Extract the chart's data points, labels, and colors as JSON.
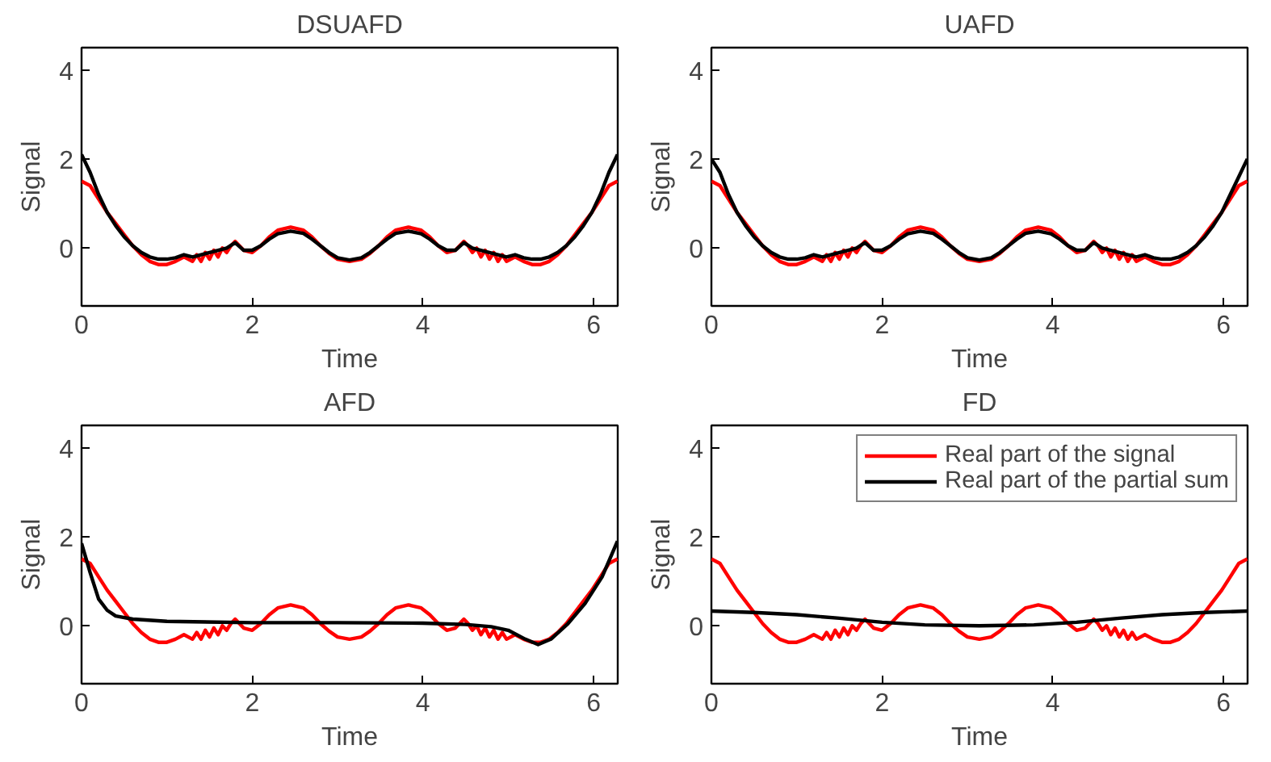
{
  "chart_data": [
    {
      "type": "line",
      "title": "DSUAFD",
      "xlabel": "Time",
      "ylabel": "Signal",
      "xlim": [
        0,
        6.283
      ],
      "ylim": [
        -1.3,
        4.5
      ],
      "xticks": [
        0,
        2,
        4,
        6
      ],
      "yticks": [
        0,
        2,
        4
      ],
      "grid": false,
      "legend": false,
      "series": [
        {
          "color": "#ff0000",
          "x": [
            0,
            0.1,
            0.2,
            0.3,
            0.4,
            0.5,
            0.6,
            0.7,
            0.8,
            0.9,
            1.0,
            1.1,
            1.2,
            1.3,
            1.35,
            1.4,
            1.45,
            1.5,
            1.55,
            1.6,
            1.65,
            1.7,
            1.75,
            1.8,
            1.9,
            2.0,
            2.1,
            2.2,
            2.3,
            2.45,
            2.6,
            2.7,
            2.8,
            2.9,
            3.0,
            3.14,
            3.28,
            3.38,
            3.48,
            3.58,
            3.68,
            3.83,
            3.98,
            4.08,
            4.18,
            4.28,
            4.38,
            4.48,
            4.53,
            4.58,
            4.63,
            4.68,
            4.73,
            4.78,
            4.83,
            4.88,
            4.93,
            4.98,
            5.08,
            5.18,
            5.28,
            5.38,
            5.48,
            5.58,
            5.68,
            5.78,
            5.88,
            5.98,
            6.08,
            6.18,
            6.28
          ],
          "values": [
            1.5,
            1.4,
            1.1,
            0.8,
            0.55,
            0.3,
            0.05,
            -0.15,
            -0.3,
            -0.37,
            -0.37,
            -0.3,
            -0.2,
            -0.3,
            -0.15,
            -0.3,
            -0.1,
            -0.25,
            -0.05,
            -0.2,
            0.0,
            -0.1,
            0.05,
            0.15,
            -0.05,
            -0.1,
            0.05,
            0.25,
            0.4,
            0.47,
            0.4,
            0.25,
            0.05,
            -0.12,
            -0.25,
            -0.3,
            -0.25,
            -0.12,
            0.05,
            0.25,
            0.4,
            0.47,
            0.4,
            0.25,
            0.05,
            -0.1,
            -0.05,
            0.15,
            0.05,
            -0.1,
            0.0,
            -0.2,
            -0.05,
            -0.25,
            -0.1,
            -0.3,
            -0.15,
            -0.3,
            -0.2,
            -0.3,
            -0.37,
            -0.37,
            -0.3,
            -0.15,
            0.05,
            0.3,
            0.55,
            0.8,
            1.1,
            1.4,
            1.5
          ]
        },
        {
          "color": "#000000",
          "x": [
            0,
            0.1,
            0.2,
            0.3,
            0.4,
            0.5,
            0.6,
            0.7,
            0.8,
            0.9,
            1.0,
            1.1,
            1.2,
            1.3,
            1.4,
            1.5,
            1.6,
            1.7,
            1.8,
            1.9,
            2.0,
            2.1,
            2.2,
            2.3,
            2.45,
            2.6,
            2.7,
            2.8,
            2.9,
            3.0,
            3.14,
            3.28,
            3.38,
            3.48,
            3.58,
            3.68,
            3.83,
            3.98,
            4.08,
            4.18,
            4.28,
            4.38,
            4.48,
            4.58,
            4.68,
            4.78,
            4.88,
            4.98,
            5.08,
            5.18,
            5.28,
            5.38,
            5.48,
            5.58,
            5.68,
            5.78,
            5.88,
            5.98,
            6.08,
            6.18,
            6.28
          ],
          "values": [
            2.1,
            1.7,
            1.2,
            0.8,
            0.5,
            0.25,
            0.05,
            -0.1,
            -0.2,
            -0.25,
            -0.25,
            -0.22,
            -0.15,
            -0.2,
            -0.15,
            -0.1,
            -0.05,
            0.0,
            0.12,
            -0.05,
            -0.05,
            0.05,
            0.2,
            0.32,
            0.38,
            0.33,
            0.2,
            0.05,
            -0.1,
            -0.22,
            -0.27,
            -0.22,
            -0.1,
            0.05,
            0.2,
            0.33,
            0.38,
            0.32,
            0.2,
            0.05,
            -0.05,
            -0.05,
            0.12,
            0.0,
            -0.05,
            -0.1,
            -0.15,
            -0.2,
            -0.15,
            -0.22,
            -0.25,
            -0.25,
            -0.2,
            -0.1,
            0.05,
            0.25,
            0.5,
            0.8,
            1.2,
            1.7,
            2.1
          ]
        }
      ]
    },
    {
      "type": "line",
      "title": "UAFD",
      "xlabel": "Time",
      "ylabel": "Signal",
      "xlim": [
        0,
        6.283
      ],
      "ylim": [
        -1.3,
        4.5
      ],
      "xticks": [
        0,
        2,
        4,
        6
      ],
      "yticks": [
        0,
        2,
        4
      ],
      "grid": false,
      "legend": false,
      "series": [
        {
          "color": "#ff0000",
          "x": [
            0,
            0.1,
            0.2,
            0.3,
            0.4,
            0.5,
            0.6,
            0.7,
            0.8,
            0.9,
            1.0,
            1.1,
            1.2,
            1.3,
            1.35,
            1.4,
            1.45,
            1.5,
            1.55,
            1.6,
            1.65,
            1.7,
            1.75,
            1.8,
            1.9,
            2.0,
            2.1,
            2.2,
            2.3,
            2.45,
            2.6,
            2.7,
            2.8,
            2.9,
            3.0,
            3.14,
            3.28,
            3.38,
            3.48,
            3.58,
            3.68,
            3.83,
            3.98,
            4.08,
            4.18,
            4.28,
            4.38,
            4.48,
            4.53,
            4.58,
            4.63,
            4.68,
            4.73,
            4.78,
            4.83,
            4.88,
            4.93,
            4.98,
            5.08,
            5.18,
            5.28,
            5.38,
            5.48,
            5.58,
            5.68,
            5.78,
            5.88,
            5.98,
            6.08,
            6.18,
            6.28
          ],
          "values": [
            1.5,
            1.4,
            1.1,
            0.8,
            0.55,
            0.3,
            0.05,
            -0.15,
            -0.3,
            -0.37,
            -0.37,
            -0.3,
            -0.2,
            -0.3,
            -0.15,
            -0.3,
            -0.1,
            -0.25,
            -0.05,
            -0.2,
            0.0,
            -0.1,
            0.05,
            0.15,
            -0.05,
            -0.1,
            0.05,
            0.25,
            0.4,
            0.47,
            0.4,
            0.25,
            0.05,
            -0.12,
            -0.25,
            -0.3,
            -0.25,
            -0.12,
            0.05,
            0.25,
            0.4,
            0.47,
            0.4,
            0.25,
            0.05,
            -0.1,
            -0.05,
            0.15,
            0.05,
            -0.1,
            0.0,
            -0.2,
            -0.05,
            -0.25,
            -0.1,
            -0.3,
            -0.15,
            -0.3,
            -0.2,
            -0.3,
            -0.37,
            -0.37,
            -0.3,
            -0.15,
            0.05,
            0.3,
            0.55,
            0.8,
            1.1,
            1.4,
            1.5
          ]
        },
        {
          "color": "#000000",
          "x": [
            0,
            0.1,
            0.2,
            0.3,
            0.4,
            0.5,
            0.6,
            0.7,
            0.8,
            0.9,
            1.0,
            1.1,
            1.2,
            1.3,
            1.4,
            1.5,
            1.6,
            1.7,
            1.8,
            1.9,
            2.0,
            2.1,
            2.2,
            2.3,
            2.45,
            2.6,
            2.7,
            2.8,
            2.9,
            3.0,
            3.14,
            3.28,
            3.38,
            3.48,
            3.58,
            3.68,
            3.83,
            3.98,
            4.08,
            4.18,
            4.28,
            4.38,
            4.48,
            4.58,
            4.68,
            4.78,
            4.88,
            4.98,
            5.08,
            5.18,
            5.28,
            5.38,
            5.48,
            5.58,
            5.68,
            5.78,
            5.88,
            5.98,
            6.08,
            6.18,
            6.28
          ],
          "values": [
            2.0,
            1.7,
            1.2,
            0.8,
            0.5,
            0.25,
            0.05,
            -0.1,
            -0.2,
            -0.25,
            -0.25,
            -0.22,
            -0.15,
            -0.2,
            -0.15,
            -0.1,
            -0.05,
            0.0,
            0.12,
            -0.05,
            -0.05,
            0.05,
            0.2,
            0.32,
            0.38,
            0.33,
            0.2,
            0.05,
            -0.1,
            -0.22,
            -0.27,
            -0.22,
            -0.1,
            0.05,
            0.2,
            0.33,
            0.38,
            0.32,
            0.2,
            0.05,
            -0.05,
            -0.05,
            0.12,
            0.0,
            -0.05,
            -0.1,
            -0.15,
            -0.2,
            -0.15,
            -0.22,
            -0.25,
            -0.25,
            -0.2,
            -0.1,
            0.05,
            0.25,
            0.5,
            0.8,
            1.2,
            1.6,
            2.0
          ]
        }
      ]
    },
    {
      "type": "line",
      "title": "AFD",
      "xlabel": "Time",
      "ylabel": "Signal",
      "xlim": [
        0,
        6.283
      ],
      "ylim": [
        -1.3,
        4.5
      ],
      "xticks": [
        0,
        2,
        4,
        6
      ],
      "yticks": [
        0,
        2,
        4
      ],
      "grid": false,
      "legend": false,
      "series": [
        {
          "color": "#ff0000",
          "x": [
            0,
            0.1,
            0.2,
            0.3,
            0.4,
            0.5,
            0.6,
            0.7,
            0.8,
            0.9,
            1.0,
            1.1,
            1.2,
            1.3,
            1.35,
            1.4,
            1.45,
            1.5,
            1.55,
            1.6,
            1.65,
            1.7,
            1.75,
            1.8,
            1.9,
            2.0,
            2.1,
            2.2,
            2.3,
            2.45,
            2.6,
            2.7,
            2.8,
            2.9,
            3.0,
            3.14,
            3.28,
            3.38,
            3.48,
            3.58,
            3.68,
            3.83,
            3.98,
            4.08,
            4.18,
            4.28,
            4.38,
            4.48,
            4.53,
            4.58,
            4.63,
            4.68,
            4.73,
            4.78,
            4.83,
            4.88,
            4.93,
            4.98,
            5.08,
            5.18,
            5.28,
            5.38,
            5.48,
            5.58,
            5.68,
            5.78,
            5.88,
            5.98,
            6.08,
            6.18,
            6.28
          ],
          "values": [
            1.5,
            1.4,
            1.1,
            0.8,
            0.55,
            0.3,
            0.05,
            -0.15,
            -0.3,
            -0.37,
            -0.37,
            -0.3,
            -0.2,
            -0.3,
            -0.15,
            -0.3,
            -0.1,
            -0.25,
            -0.05,
            -0.2,
            0.0,
            -0.1,
            0.05,
            0.15,
            -0.05,
            -0.1,
            0.05,
            0.25,
            0.4,
            0.47,
            0.4,
            0.25,
            0.05,
            -0.12,
            -0.25,
            -0.3,
            -0.25,
            -0.12,
            0.05,
            0.25,
            0.4,
            0.47,
            0.4,
            0.25,
            0.05,
            -0.1,
            -0.05,
            0.15,
            0.05,
            -0.1,
            0.0,
            -0.2,
            -0.05,
            -0.25,
            -0.1,
            -0.3,
            -0.15,
            -0.3,
            -0.2,
            -0.3,
            -0.37,
            -0.37,
            -0.3,
            -0.15,
            0.05,
            0.3,
            0.55,
            0.8,
            1.1,
            1.4,
            1.5
          ]
        },
        {
          "color": "#000000",
          "x": [
            0,
            0.1,
            0.2,
            0.3,
            0.4,
            0.6,
            1.0,
            2.0,
            3.0,
            4.0,
            4.5,
            4.8,
            5.0,
            5.2,
            5.35,
            5.5,
            5.7,
            5.9,
            6.1,
            6.28
          ],
          "values": [
            1.85,
            1.2,
            0.6,
            0.35,
            0.22,
            0.15,
            0.1,
            0.07,
            0.07,
            0.06,
            0.03,
            -0.02,
            -0.1,
            -0.3,
            -0.42,
            -0.3,
            0.05,
            0.5,
            1.1,
            1.9
          ]
        }
      ]
    },
    {
      "type": "line",
      "title": "FD",
      "xlabel": "Time",
      "ylabel": "Signal",
      "xlim": [
        0,
        6.283
      ],
      "ylim": [
        -1.3,
        4.5
      ],
      "xticks": [
        0,
        2,
        4,
        6
      ],
      "yticks": [
        0,
        2,
        4
      ],
      "grid": false,
      "legend": "top right",
      "series": [
        {
          "name": "Real part of the signal",
          "color": "#ff0000",
          "x": [
            0,
            0.1,
            0.2,
            0.3,
            0.4,
            0.5,
            0.6,
            0.7,
            0.8,
            0.9,
            1.0,
            1.1,
            1.2,
            1.3,
            1.35,
            1.4,
            1.45,
            1.5,
            1.55,
            1.6,
            1.65,
            1.7,
            1.75,
            1.8,
            1.9,
            2.0,
            2.1,
            2.2,
            2.3,
            2.45,
            2.6,
            2.7,
            2.8,
            2.9,
            3.0,
            3.14,
            3.28,
            3.38,
            3.48,
            3.58,
            3.68,
            3.83,
            3.98,
            4.08,
            4.18,
            4.28,
            4.38,
            4.48,
            4.53,
            4.58,
            4.63,
            4.68,
            4.73,
            4.78,
            4.83,
            4.88,
            4.93,
            4.98,
            5.08,
            5.18,
            5.28,
            5.38,
            5.48,
            5.58,
            5.68,
            5.78,
            5.88,
            5.98,
            6.08,
            6.18,
            6.28
          ],
          "values": [
            1.5,
            1.4,
            1.1,
            0.8,
            0.55,
            0.3,
            0.05,
            -0.15,
            -0.3,
            -0.37,
            -0.37,
            -0.3,
            -0.2,
            -0.3,
            -0.15,
            -0.3,
            -0.1,
            -0.25,
            -0.05,
            -0.2,
            0.0,
            -0.1,
            0.05,
            0.15,
            -0.05,
            -0.1,
            0.05,
            0.25,
            0.4,
            0.47,
            0.4,
            0.25,
            0.05,
            -0.12,
            -0.25,
            -0.3,
            -0.25,
            -0.12,
            0.05,
            0.25,
            0.4,
            0.47,
            0.4,
            0.25,
            0.05,
            -0.1,
            -0.05,
            0.15,
            0.05,
            -0.1,
            0.0,
            -0.2,
            -0.05,
            -0.25,
            -0.1,
            -0.3,
            -0.15,
            -0.3,
            -0.2,
            -0.3,
            -0.37,
            -0.37,
            -0.3,
            -0.15,
            0.05,
            0.3,
            0.55,
            0.8,
            1.1,
            1.4,
            1.5
          ]
        },
        {
          "name": "Real part of the partial sum",
          "color": "#000000",
          "x": [
            0,
            0.5,
            1.0,
            1.5,
            2.0,
            2.5,
            3.14,
            3.78,
            4.28,
            4.78,
            5.28,
            5.78,
            6.28
          ],
          "values": [
            0.33,
            0.3,
            0.25,
            0.17,
            0.08,
            0.02,
            0.0,
            0.02,
            0.08,
            0.17,
            0.25,
            0.3,
            0.33
          ]
        }
      ]
    }
  ]
}
